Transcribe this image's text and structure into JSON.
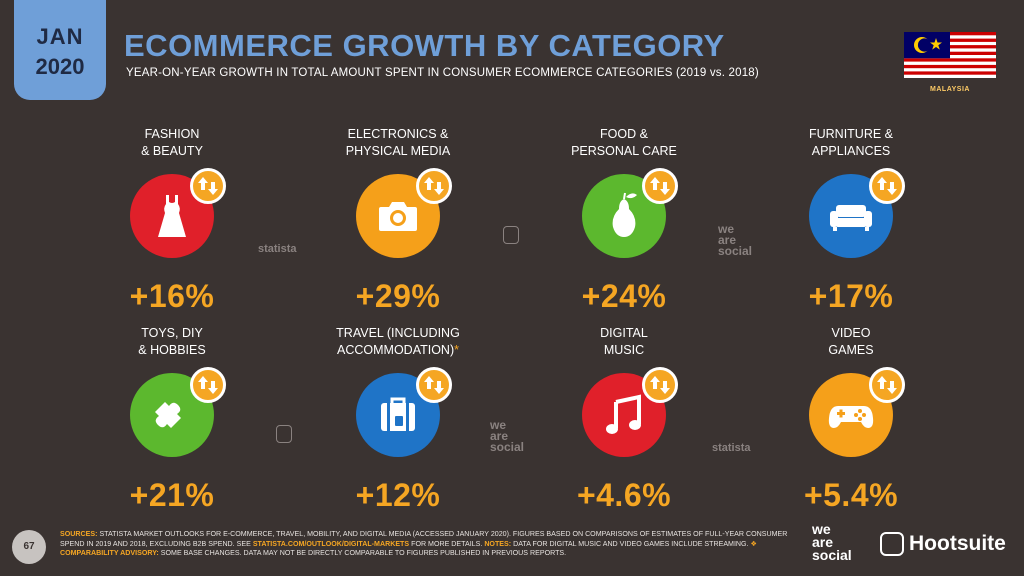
{
  "header": {
    "month": "JAN",
    "year": "2020",
    "title": "ECOMMERCE GROWTH BY CATEGORY",
    "subtitle": "YEAR-ON-YEAR GROWTH IN TOTAL AMOUNT SPENT IN CONSUMER ECOMMERCE CATEGORIES (2019 vs. 2018)",
    "country": "MALAYSIA"
  },
  "colors": {
    "background": "#3a3331",
    "accent_blue": "#6f9fd8",
    "accent_orange": "#f5a623",
    "red": "#e0202a",
    "orange": "#f5a01a",
    "green": "#5cb82e",
    "blue": "#1f74c7"
  },
  "categories": [
    {
      "label_line1": "FASHION",
      "label_line2": "& BEAUTY",
      "asterisk": "",
      "value": "+16%",
      "color": "#e0202a",
      "icon": "dress-icon"
    },
    {
      "label_line1": "ELECTRONICS &",
      "label_line2": "PHYSICAL MEDIA",
      "asterisk": "",
      "value": "+29%",
      "color": "#f5a01a",
      "icon": "camera-icon"
    },
    {
      "label_line1": "FOOD &",
      "label_line2": "PERSONAL CARE",
      "asterisk": "",
      "value": "+24%",
      "color": "#5cb82e",
      "icon": "pear-icon"
    },
    {
      "label_line1": "FURNITURE &",
      "label_line2": "APPLIANCES",
      "asterisk": "",
      "value": "+17%",
      "color": "#1f74c7",
      "icon": "sofa-icon"
    },
    {
      "label_line1": "TOYS, DIY",
      "label_line2": "& HOBBIES",
      "asterisk": "",
      "value": "+21%",
      "color": "#5cb82e",
      "icon": "puzzle-icon"
    },
    {
      "label_line1": "TRAVEL (INCLUDING",
      "label_line2": "ACCOMMODATION)",
      "asterisk": "*",
      "value": "+12%",
      "color": "#1f74c7",
      "icon": "suitcase-icon"
    },
    {
      "label_line1": "DIGITAL",
      "label_line2": "MUSIC",
      "asterisk": "",
      "value": "+4.6%",
      "color": "#e0202a",
      "icon": "music-note-icon"
    },
    {
      "label_line1": "VIDEO",
      "label_line2": "GAMES",
      "asterisk": "",
      "value": "+5.4%",
      "color": "#f5a01a",
      "icon": "gamepad-icon"
    }
  ],
  "watermarks": {
    "statista": "statista",
    "we": "we",
    "are": "are",
    "social": "social"
  },
  "footer": {
    "page_number": "67",
    "sources_label": "SOURCES:",
    "sources_text_1": "STATISTA MARKET OUTLOOKS FOR E-COMMERCE, TRAVEL, MOBILITY, AND DIGITAL MEDIA (ACCESSED JANUARY 2020). FIGURES BASED ON COMPARISONS OF ESTIMATES OF FULL-YEAR CONSUMER SPEND IN 2019 AND 2018, EXCLUDING B2B SPEND. SEE",
    "sources_link": "STATISTA.COM/OUTLOOK/DIGITAL-MARKETS",
    "sources_text_2": "FOR MORE DETAILS.",
    "notes_label": "NOTES:",
    "notes_text": "DATA FOR DIGITAL MUSIC AND VIDEO GAMES INCLUDE STREAMING.",
    "advisory_label": "❖ COMPARABILITY ADVISORY:",
    "advisory_text": "SOME BASE CHANGES. DATA MAY NOT BE DIRECTLY COMPARABLE TO FIGURES PUBLISHED IN PREVIOUS REPORTS.",
    "brand_we": "we",
    "brand_are": "are",
    "brand_social": "social",
    "brand_hootsuite": "Hootsuite"
  }
}
